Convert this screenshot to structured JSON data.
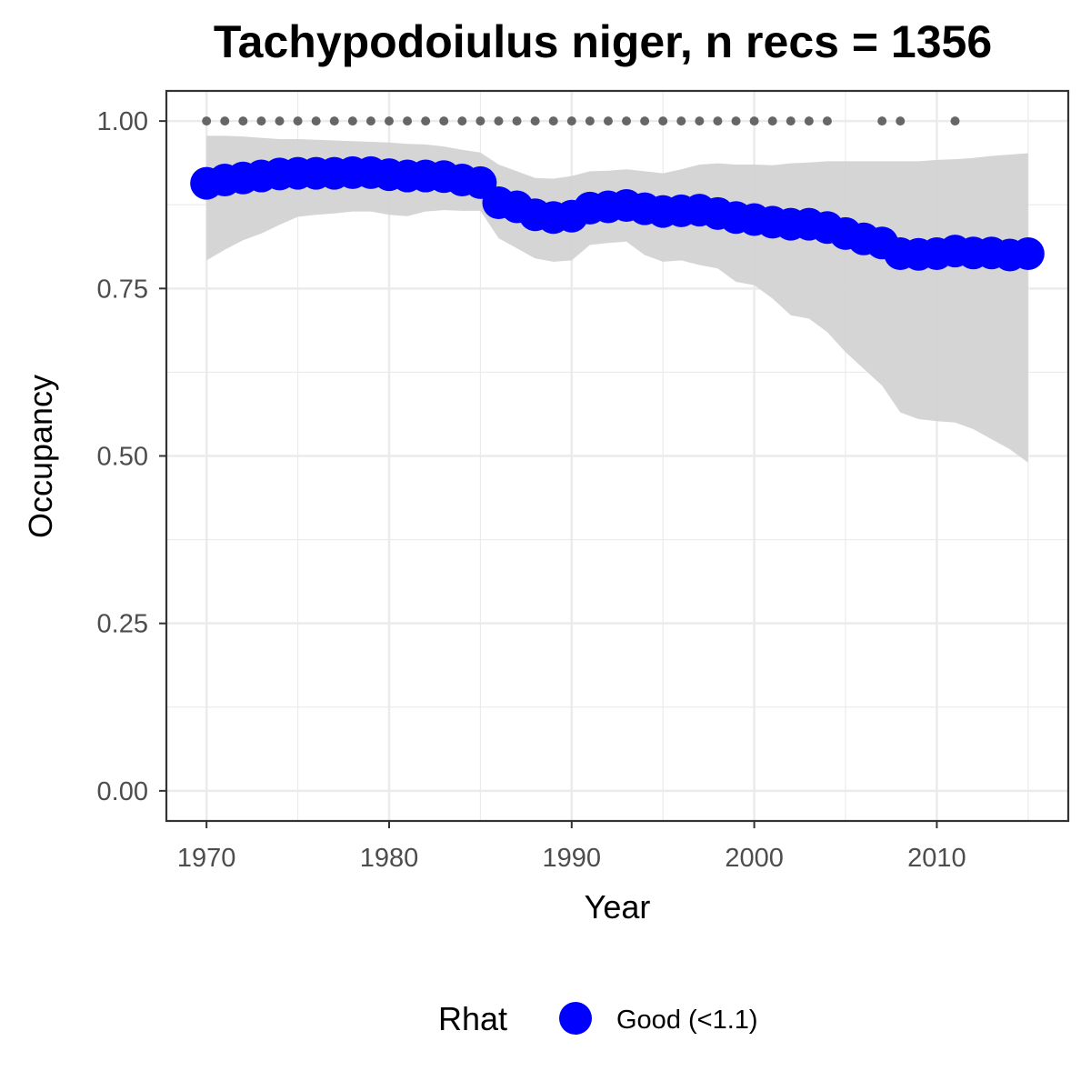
{
  "chart_data": {
    "type": "line",
    "title": "Tachypodoiulus niger, n recs = 1356",
    "xlabel": "Year",
    "ylabel": "Occupancy",
    "xlim": [
      1967.8,
      2017.2
    ],
    "ylim": [
      -0.045,
      1.045
    ],
    "x_ticks": [
      1970,
      1980,
      1990,
      2000,
      2010
    ],
    "y_ticks": [
      0,
      0.25,
      0.5,
      0.75,
      1
    ],
    "x_tick_labels": [
      "1970",
      "1980",
      "1990",
      "2000",
      "2010"
    ],
    "y_tick_labels": [
      "0.00",
      "0.25",
      "0.50",
      "0.75",
      "1.00"
    ],
    "grid": true,
    "legend": {
      "title": "Rhat",
      "position": "bottom",
      "entries": [
        {
          "label": "Good (<1.1)",
          "color": "#0000ff"
        }
      ]
    },
    "series": [
      {
        "name": "Good (<1.1)",
        "x": [
          1970,
          1971,
          1972,
          1973,
          1974,
          1975,
          1976,
          1977,
          1978,
          1979,
          1980,
          1981,
          1982,
          1983,
          1984,
          1985,
          1986,
          1987,
          1988,
          1989,
          1990,
          1991,
          1992,
          1993,
          1994,
          1995,
          1996,
          1997,
          1998,
          1999,
          2000,
          2001,
          2002,
          2003,
          2004,
          2005,
          2006,
          2007,
          2008,
          2009,
          2010,
          2011,
          2012,
          2013,
          2014,
          2015
        ],
        "y": [
          0.907,
          0.912,
          0.915,
          0.918,
          0.921,
          0.922,
          0.922,
          0.922,
          0.923,
          0.923,
          0.92,
          0.918,
          0.918,
          0.917,
          0.912,
          0.908,
          0.878,
          0.872,
          0.86,
          0.856,
          0.858,
          0.87,
          0.872,
          0.874,
          0.869,
          0.865,
          0.866,
          0.867,
          0.862,
          0.856,
          0.853,
          0.849,
          0.846,
          0.846,
          0.841,
          0.832,
          0.824,
          0.818,
          0.802,
          0.801,
          0.802,
          0.806,
          0.803,
          0.803,
          0.8,
          0.802
        ],
        "lower": [
          0.792,
          0.808,
          0.822,
          0.832,
          0.845,
          0.857,
          0.86,
          0.862,
          0.865,
          0.865,
          0.86,
          0.858,
          0.865,
          0.867,
          0.866,
          0.866,
          0.825,
          0.81,
          0.795,
          0.79,
          0.792,
          0.815,
          0.818,
          0.82,
          0.8,
          0.79,
          0.792,
          0.785,
          0.78,
          0.76,
          0.755,
          0.735,
          0.71,
          0.705,
          0.685,
          0.655,
          0.63,
          0.605,
          0.565,
          0.555,
          0.552,
          0.55,
          0.54,
          0.525,
          0.51,
          0.49
        ],
        "upper": [
          0.978,
          0.978,
          0.977,
          0.975,
          0.973,
          0.973,
          0.972,
          0.971,
          0.97,
          0.969,
          0.968,
          0.966,
          0.965,
          0.962,
          0.957,
          0.953,
          0.935,
          0.925,
          0.915,
          0.914,
          0.918,
          0.925,
          0.926,
          0.928,
          0.925,
          0.922,
          0.928,
          0.935,
          0.937,
          0.935,
          0.935,
          0.934,
          0.937,
          0.938,
          0.94,
          0.94,
          0.94,
          0.94,
          0.94,
          0.94,
          0.942,
          0.943,
          0.945,
          0.948,
          0.95,
          0.952
        ],
        "color": "#0000ff",
        "band_color": "#d3d3d3"
      }
    ],
    "record_years": {
      "y": 1,
      "color": "#666666",
      "x": [
        1970,
        1971,
        1972,
        1973,
        1974,
        1975,
        1976,
        1977,
        1978,
        1979,
        1980,
        1981,
        1982,
        1983,
        1984,
        1985,
        1986,
        1987,
        1988,
        1989,
        1990,
        1991,
        1992,
        1993,
        1994,
        1995,
        1996,
        1997,
        1998,
        1999,
        2000,
        2001,
        2002,
        2003,
        2004,
        2007,
        2008,
        2011
      ]
    }
  }
}
